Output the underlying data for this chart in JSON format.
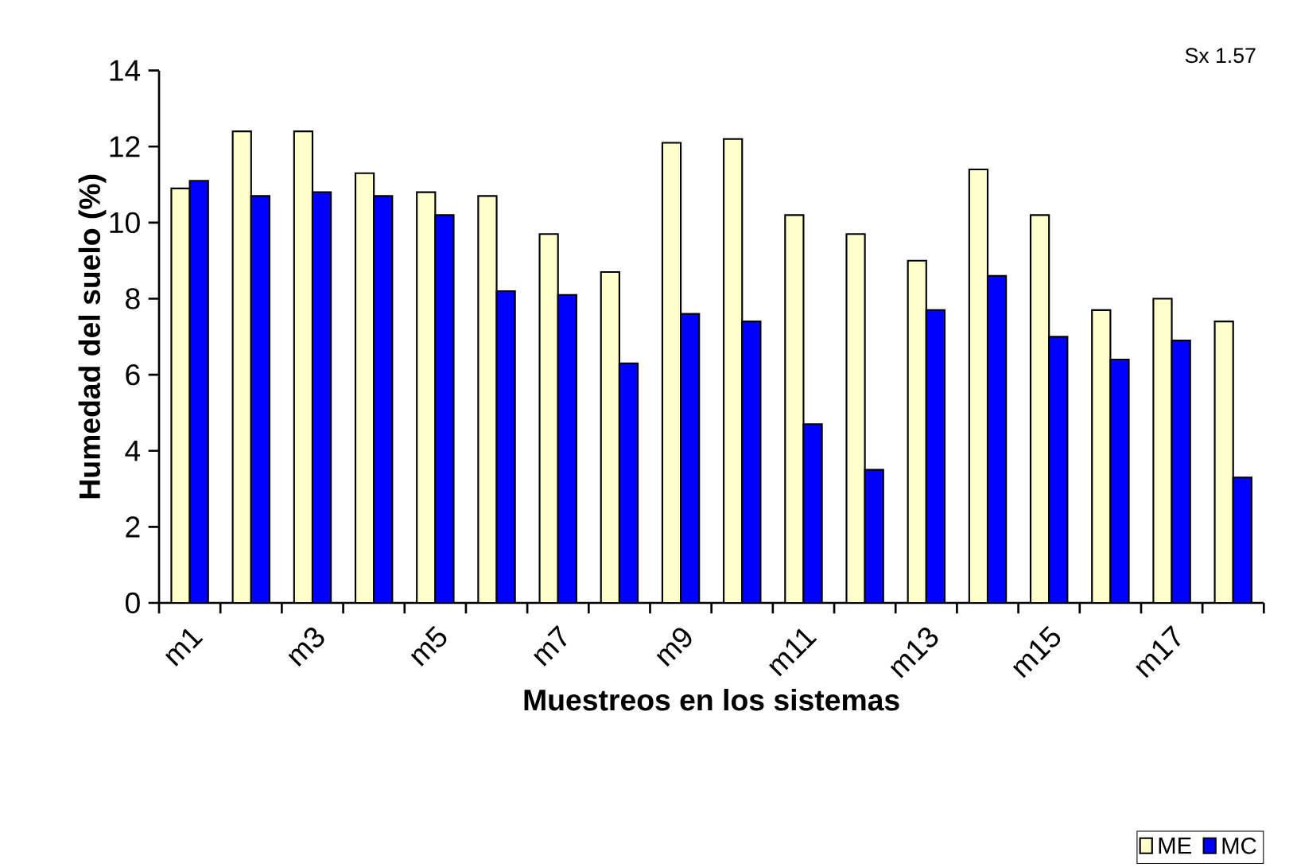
{
  "chart_data": {
    "type": "bar",
    "xlabel": "Muestreos en los sistemas",
    "ylabel": "Humedad del suelo (%)",
    "categories": [
      "m1",
      null,
      "m3",
      null,
      "m5",
      null,
      "m7",
      null,
      "m9",
      null,
      "m11",
      null,
      "m13",
      null,
      "m15",
      null,
      "m17",
      null
    ],
    "series": [
      {
        "name": "ME",
        "color": "#ffffcc",
        "values": [
          10.9,
          12.4,
          12.4,
          11.3,
          10.8,
          10.7,
          9.7,
          8.7,
          12.1,
          12.2,
          10.2,
          9.7,
          9.0,
          11.4,
          10.2,
          7.7,
          8.0,
          7.4
        ]
      },
      {
        "name": "MC",
        "color": "#0000ff",
        "values": [
          11.1,
          10.7,
          10.8,
          10.7,
          10.2,
          8.2,
          8.1,
          6.3,
          7.6,
          7.4,
          4.7,
          3.5,
          7.7,
          8.6,
          7.0,
          6.4,
          6.9,
          3.3
        ]
      }
    ],
    "ylim": [
      0,
      14
    ],
    "yticks": [
      0,
      2,
      4,
      6,
      8,
      10,
      12,
      14
    ],
    "legend": "bottom right",
    "annotations": [
      "Sx 1.57"
    ]
  }
}
